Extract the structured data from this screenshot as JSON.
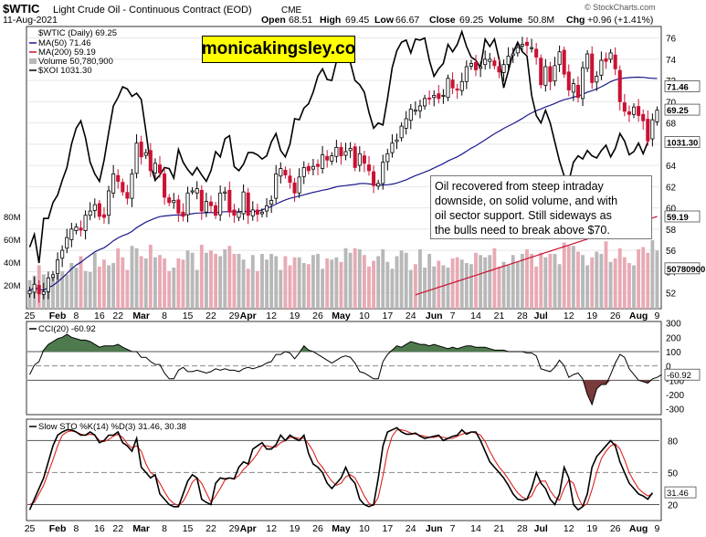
{
  "header": {
    "symbol": "$WTIC",
    "name": "Light Crude Oil - Continuous Contract (EOD)",
    "exchange": "CME",
    "date": "11-Aug-2021",
    "open_label": "Open",
    "open": "68.51",
    "high_label": "High",
    "high": "69.45",
    "low_label": "Low",
    "low": "66.67",
    "close_label": "Close",
    "close": "69.25",
    "volume_label": "Volume",
    "volume": "50.8M",
    "chg_label": "Chg",
    "chg": "+0.96 (+1.41%)",
    "watermark": "© StockCharts.com"
  },
  "brand": "monicakingsley.co",
  "annotation_lines": [
    "Oil recovered from steep intraday",
    "downside, on solid volume, and with",
    "oil sector support. Still sideways as",
    "the bulls need to break above $70."
  ],
  "colors": {
    "up": "#000000",
    "down": "#cc1133",
    "ma50": "#1a1a8c",
    "ma200": "#cc1133",
    "xoi": "#000000",
    "vol_up": "#b8b8b8",
    "vol_down": "#e8aab4",
    "cci_fill": "#4e7a4e",
    "cci_fill_neg": "#7a3a3a",
    "sto_k": "#000000",
    "sto_d": "#dd2222",
    "brand_bg": "#ffff00"
  },
  "chart_data": [
    {
      "type": "candlestick",
      "title": "$WTIC (Daily) 69.25",
      "legend": [
        {
          "label": "$WTIC (Daily) 69.25"
        },
        {
          "label": "MA(50) 71.46"
        },
        {
          "label": "MA(200) 59.19"
        },
        {
          "label": "Volume 50,780,900"
        },
        {
          "label": "$XOI 1031.30"
        }
      ],
      "ylim": [
        50.5,
        77
      ],
      "y_ticks": [
        "52",
        "54",
        "56",
        "58",
        "60",
        "62",
        "64",
        "66",
        "68",
        "70",
        "72",
        "74",
        "76"
      ],
      "vol_ticks": [
        "20M",
        "40M",
        "60M",
        "80M"
      ],
      "vol_max_m": 100,
      "x_labels": [
        "25",
        "Feb",
        "8",
        "16",
        "22",
        "Mar",
        "8",
        "15",
        "22",
        "29",
        "Apr",
        "12",
        "19",
        "26",
        "May",
        "10",
        "17",
        "24",
        "Jun",
        "7",
        "14",
        "21",
        "28",
        "Jul",
        "12",
        "19",
        "26",
        "Aug",
        "9"
      ],
      "x_label_index": [
        0,
        6,
        10,
        15,
        19,
        24,
        29,
        34,
        39,
        44,
        47,
        52,
        57,
        62,
        67,
        72,
        77,
        82,
        87,
        91,
        96,
        101,
        106,
        110,
        116,
        121,
        126,
        131,
        135
      ],
      "tags": {
        "ma50": "71.46",
        "price": "69.25",
        "xoi": "1031.30",
        "ma200": "59.19",
        "vol": "50780900"
      },
      "close": [
        52.2,
        52.8,
        51.9,
        52.1,
        53.4,
        53.7,
        55.1,
        56.0,
        57.2,
        58.0,
        58.2,
        57.9,
        59.3,
        59.7,
        60.3,
        59.2,
        59.1,
        61.6,
        63.2,
        62.5,
        61.5,
        60.9,
        63.2,
        66.1,
        64.8,
        65.2,
        63.5,
        64.2,
        63.3,
        61.0,
        60.5,
        60.7,
        59.5,
        59.2,
        61.4,
        61.6,
        61.8,
        59.7,
        60.6,
        60.2,
        59.3,
        61.4,
        61.5,
        59.6,
        59.3,
        59.6,
        61.5,
        59.3,
        59.8,
        59.4,
        59.6,
        60.2,
        60.7,
        63.2,
        63.7,
        63.1,
        62.4,
        61.4,
        62.9,
        63.8,
        63.5,
        63.9,
        63.9,
        65.0,
        64.5,
        64.9,
        65.7,
        64.9,
        65.3,
        65.6,
        63.8,
        65.1,
        64.2,
        63.5,
        62.1,
        62.3,
        64.3,
        65.1,
        66.1,
        66.4,
        67.7,
        68.4,
        69.3,
        69.2,
        69.6,
        70.3,
        70.3,
        70.6,
        70.3,
        70.6,
        72.2,
        71.3,
        71.1,
        71.9,
        73.3,
        73.6,
        73.0,
        73.3,
        74.0,
        74.0,
        73.4,
        72.8,
        73.5,
        74.3,
        74.5,
        75.1,
        75.4,
        75.3,
        75.1,
        74.2,
        71.6,
        73.3,
        71.9,
        73.4,
        74.7,
        72.6,
        71.1,
        71.7,
        70.4,
        73.2,
        74.5,
        71.8,
        72.4,
        73.9,
        73.8,
        74.6,
        73.1,
        70.0,
        69.1,
        68.8,
        69.5,
        68.7,
        68.2,
        66.3,
        68.3,
        69.2
      ],
      "xoi_close": [
        56.3,
        57.5,
        54.8,
        59.0,
        59.0,
        60.5,
        61.2,
        62.6,
        63.8,
        66.0,
        67.5,
        68.2,
        66.6,
        64.3,
        63.2,
        62.5,
        64.5,
        67.1,
        69.6,
        70.4,
        71.4,
        71.2,
        70.5,
        70.8,
        70.2,
        67.2,
        64.0,
        62.6,
        63.1,
        63.8,
        63.7,
        62.8,
        65.5,
        64.3,
        63.6,
        63.1,
        63.8,
        63.1,
        62.5,
        63.5,
        65.3,
        64.8,
        66.5,
        66.8,
        63.9,
        63.5,
        64.1,
        65.2,
        65.2,
        65.0,
        64.6,
        64.9,
        66.2,
        67.0,
        65.4,
        64.8,
        66.0,
        68.4,
        68.3,
        69.4,
        69.8,
        70.9,
        72.4,
        73.1,
        72.1,
        72.0,
        73.8,
        74.8,
        74.4,
        73.7,
        72.0,
        71.6,
        70.9,
        69.0,
        67.5,
        68.0,
        67.8,
        70.3,
        73.2,
        74.8,
        75.6,
        75.8,
        74.6,
        75.9,
        75.8,
        76.0,
        73.9,
        72.4,
        73.1,
        73.6,
        75.4,
        74.7,
        75.4,
        76.6,
        75.2,
        74.2,
        73.9,
        73.2,
        75.9,
        75.2,
        75.9,
        74.0,
        71.3,
        72.9,
        74.6,
        75.6,
        74.7,
        74.3,
        70.6,
        68.7,
        68.0,
        69.2,
        68.0,
        66.2,
        64.4,
        63.0,
        62.5,
        64.3,
        64.9,
        64.6,
        65.4,
        64.9,
        64.7,
        65.4,
        65.9,
        64.8,
        65.6,
        67.0,
        66.3,
        65.0,
        65.3,
        66.1,
        65.1,
        66.2
      ],
      "volume_m": [
        25,
        29,
        38,
        30,
        23,
        30,
        30,
        33,
        30,
        40,
        36,
        46,
        33,
        32,
        49,
        37,
        43,
        38,
        40,
        53,
        45,
        34,
        55,
        53,
        46,
        44,
        56,
        45,
        47,
        44,
        33,
        36,
        44,
        43,
        51,
        49,
        34,
        56,
        49,
        51,
        48,
        46,
        52,
        55,
        48,
        48,
        43,
        35,
        47,
        33,
        48,
        43,
        48,
        46,
        34,
        46,
        38,
        45,
        45,
        40,
        39,
        47,
        48,
        35,
        44,
        43,
        45,
        41,
        53,
        49,
        53,
        52,
        47,
        37,
        42,
        46,
        52,
        41,
        35,
        46,
        51,
        49,
        34,
        39,
        52,
        36,
        48,
        37,
        42,
        38,
        36,
        44,
        45,
        43,
        40,
        39,
        49,
        47,
        45,
        47,
        53,
        37,
        41,
        38,
        47,
        41,
        48,
        52,
        48,
        37,
        49,
        45,
        48,
        48,
        39,
        58,
        55,
        55,
        50,
        47,
        38,
        45,
        50,
        48,
        59,
        41,
        44,
        53,
        45,
        40,
        38,
        52,
        54,
        49,
        60,
        51
      ]
    },
    {
      "type": "line",
      "title": "CCI(20) -60.92",
      "ylim": [
        -340,
        310
      ],
      "y_ticks": [
        "300",
        "200",
        "100",
        "0",
        "-100",
        "-200",
        "-300"
      ],
      "last_tag": "-60.92",
      "values": [
        -60,
        5,
        30,
        110,
        150,
        170,
        190,
        200,
        220,
        200,
        190,
        180,
        180,
        170,
        150,
        130,
        140,
        140,
        140,
        150,
        130,
        115,
        100,
        100,
        60,
        60,
        30,
        10,
        10,
        -50,
        -90,
        -90,
        -30,
        -10,
        -40,
        -40,
        -30,
        -40,
        -50,
        -40,
        -20,
        -30,
        -20,
        -30,
        -30,
        -40,
        -20,
        -10,
        -20,
        -10,
        0,
        20,
        30,
        80,
        80,
        100,
        90,
        50,
        90,
        140,
        110,
        100,
        80,
        60,
        40,
        20,
        40,
        60,
        70,
        60,
        20,
        -40,
        -50,
        -70,
        -90,
        -90,
        30,
        80,
        110,
        140,
        130,
        150,
        170,
        160,
        150,
        150,
        140,
        150,
        140,
        130,
        120,
        130,
        120,
        130,
        140,
        140,
        130,
        130,
        130,
        120,
        110,
        110,
        110,
        100,
        100,
        100,
        100,
        90,
        90,
        70,
        -20,
        -30,
        -40,
        -10,
        40,
        0,
        -80,
        -60,
        -50,
        -90,
        -200,
        -270,
        -160,
        -130,
        -130,
        -60,
        20,
        80,
        60,
        -20,
        -60,
        -100,
        -110,
        -120,
        -90,
        -80,
        -61
      ]
    },
    {
      "type": "line",
      "title": "Slow STO %K(14) %D(3) 31.46, 30.38",
      "ylim": [
        5,
        100
      ],
      "y_ticks": [
        "80",
        "50",
        "20"
      ],
      "last_tag": "31.46",
      "k": [
        15,
        25,
        35,
        45,
        60,
        75,
        85,
        88,
        90,
        90,
        88,
        85,
        85,
        88,
        85,
        78,
        80,
        85,
        85,
        88,
        78,
        75,
        70,
        82,
        55,
        50,
        45,
        48,
        30,
        25,
        20,
        18,
        18,
        30,
        42,
        48,
        45,
        25,
        22,
        20,
        40,
        45,
        44,
        45,
        44,
        55,
        60,
        58,
        72,
        75,
        78,
        72,
        72,
        76,
        85,
        80,
        85,
        82,
        80,
        85,
        68,
        58,
        55,
        50,
        40,
        35,
        40,
        45,
        55,
        45,
        40,
        25,
        20,
        18,
        20,
        45,
        75,
        88,
        90,
        92,
        88,
        86,
        86,
        87,
        84,
        82,
        83,
        84,
        85,
        80,
        82,
        84,
        85,
        90,
        86,
        88,
        88,
        80,
        70,
        60,
        55,
        50,
        45,
        38,
        30,
        25,
        24,
        25,
        35,
        50,
        40,
        35,
        25,
        20,
        30,
        55,
        45,
        20,
        15,
        18,
        30,
        55,
        65,
        70,
        75,
        80,
        75,
        60,
        50,
        40,
        35,
        30,
        28,
        25,
        31
      ],
      "d": [
        20,
        22,
        30,
        38,
        50,
        62,
        75,
        85,
        88,
        89,
        88,
        86,
        85,
        86,
        85,
        80,
        79,
        81,
        84,
        86,
        83,
        77,
        73,
        75,
        70,
        58,
        50,
        47,
        40,
        32,
        25,
        21,
        19,
        23,
        31,
        41,
        45,
        40,
        31,
        22,
        28,
        35,
        43,
        45,
        44,
        47,
        53,
        57,
        62,
        68,
        75,
        75,
        74,
        74,
        78,
        80,
        83,
        83,
        82,
        82,
        77,
        70,
        60,
        55,
        48,
        42,
        38,
        40,
        46,
        48,
        45,
        37,
        28,
        21,
        19,
        27,
        47,
        70,
        84,
        90,
        90,
        89,
        87,
        86,
        85,
        84,
        83,
        83,
        84,
        83,
        82,
        82,
        84,
        86,
        87,
        88,
        87,
        85,
        79,
        70,
        62,
        55,
        50,
        44,
        37,
        31,
        27,
        25,
        28,
        37,
        42,
        42,
        33,
        27,
        24,
        35,
        43,
        40,
        27,
        18,
        21,
        34,
        50,
        63,
        70,
        75,
        77,
        72,
        62,
        50,
        42,
        35,
        31,
        28,
        30
      ]
    }
  ]
}
